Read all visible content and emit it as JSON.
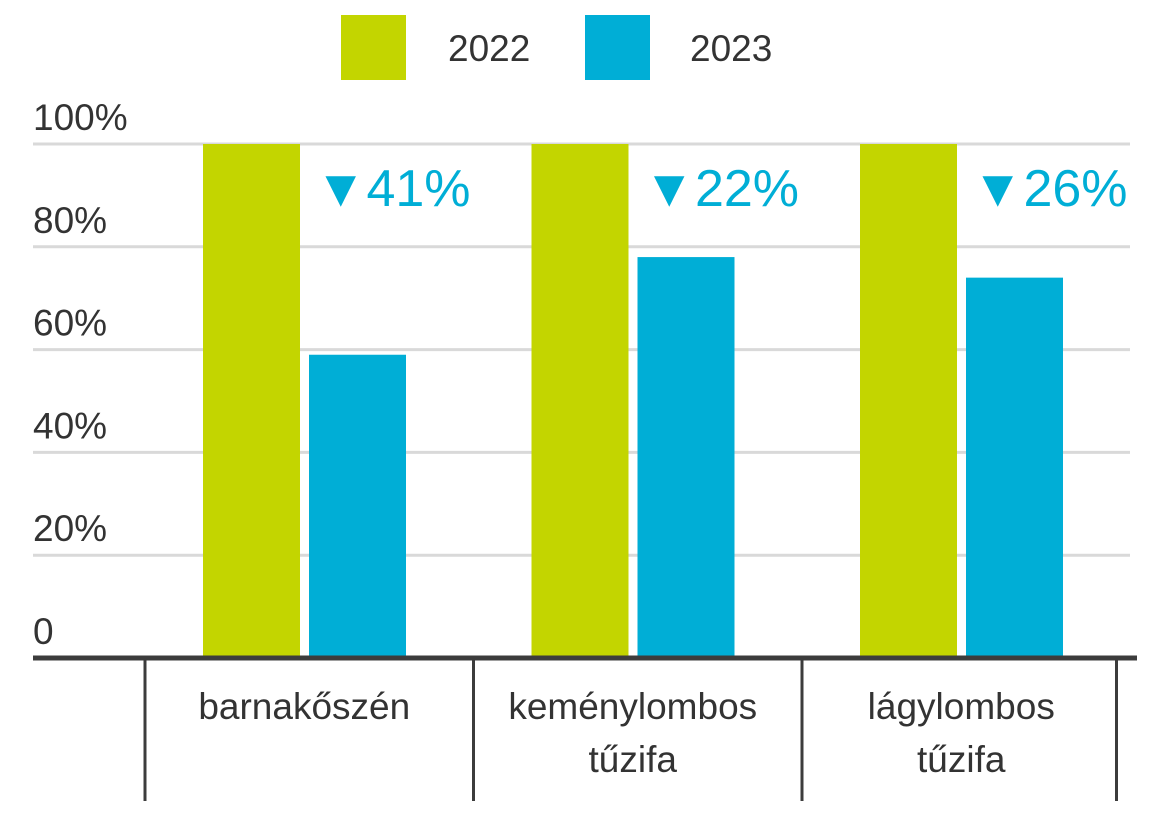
{
  "chart_data": {
    "type": "bar",
    "categories": [
      [
        "barnakőszén"
      ],
      [
        "keménylombos",
        "tűzifa"
      ],
      [
        "lágylombos",
        "tűzifa"
      ]
    ],
    "series": [
      {
        "name": "2022",
        "values": [
          100,
          100,
          100
        ],
        "color": "#c3d500"
      },
      {
        "name": "2023",
        "values": [
          59,
          78,
          74
        ],
        "color": "#00aed6"
      }
    ],
    "change_labels": [
      "▼41%",
      "▼22%",
      "▼26%"
    ],
    "change_color": "#00aed6",
    "y_ticks": [
      {
        "value": 100,
        "label": "100%"
      },
      {
        "value": 80,
        "label": "80%"
      },
      {
        "value": 60,
        "label": "60%"
      },
      {
        "value": 40,
        "label": "40%"
      },
      {
        "value": 20,
        "label": "20%"
      },
      {
        "value": 0,
        "label": "0"
      }
    ],
    "ylim": [
      0,
      100
    ],
    "grid": true,
    "legend_position": "top-center",
    "title": "",
    "xlabel": "",
    "ylabel": ""
  }
}
